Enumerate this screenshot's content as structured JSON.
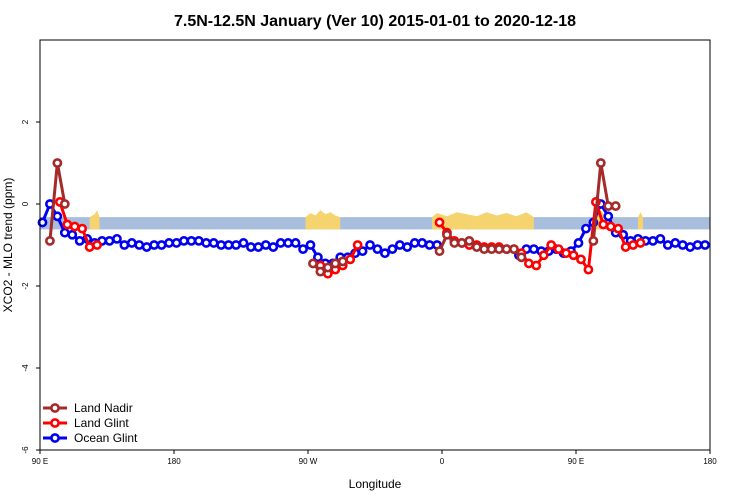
{
  "chart_data": {
    "type": "line",
    "title": "7.5N-12.5N January (Ver 10)   2015-01-01 to 2020-12-18",
    "xlabel": "Longitude",
    "ylabel": "XCO2 - MLO trend (ppm)",
    "xlim": [
      -90,
      180
    ],
    "ylim": [
      -6,
      4
    ],
    "x_ticks": [
      {
        "value": -90,
        "label": "90 E"
      },
      {
        "value": -36,
        "label": "180"
      },
      {
        "value": 18,
        "label": "90 W"
      },
      {
        "value": 72,
        "label": "0"
      },
      {
        "value": 126,
        "label": "90 E"
      },
      {
        "value": 180,
        "label": "180"
      }
    ],
    "y_ticks": [
      {
        "value": -6,
        "label": "-6"
      },
      {
        "value": -4,
        "label": "-4"
      },
      {
        "value": -2,
        "label": "-2"
      },
      {
        "value": 0,
        "label": "0"
      },
      {
        "value": 2,
        "label": "2"
      }
    ],
    "legend_position": "bottom-left",
    "background_band": {
      "y_low": -0.62,
      "y_high": -0.32,
      "color": "#a8bedc"
    },
    "land_mask": {
      "color": "#f5d36f",
      "regions": [
        {
          "x": [
            -70,
            -68,
            -67,
            -66
          ],
          "y": [
            -0.32,
            -0.25,
            -0.15,
            -0.32
          ]
        },
        {
          "x": [
            17,
            19,
            21,
            23,
            25,
            27,
            29,
            31
          ],
          "y": [
            -0.32,
            -0.22,
            -0.28,
            -0.15,
            -0.25,
            -0.2,
            -0.28,
            -0.32
          ]
        },
        {
          "x": [
            68,
            70,
            74,
            78,
            82,
            86,
            90,
            94,
            98,
            102,
            106,
            109
          ],
          "y": [
            -0.32,
            -0.22,
            -0.3,
            -0.2,
            -0.25,
            -0.3,
            -0.2,
            -0.28,
            -0.22,
            -0.3,
            -0.2,
            -0.32
          ]
        },
        {
          "x": [
            134,
            136,
            138
          ],
          "y": [
            -0.32,
            -0.15,
            -0.32
          ]
        },
        {
          "x": [
            151,
            152,
            153
          ],
          "y": [
            -0.32,
            -0.2,
            -0.32
          ]
        }
      ]
    },
    "series": [
      {
        "name": "Ocean Glint",
        "color": "#0000ee",
        "x": [
          -89,
          -86,
          -83,
          -80,
          -77,
          -74,
          -71,
          -68,
          -65,
          -62,
          -59,
          -56,
          -53,
          -50,
          -47,
          -44,
          -41,
          -38,
          -35,
          -32,
          -29,
          -26,
          -23,
          -20,
          -17,
          -14,
          -11,
          -8,
          -5,
          -2,
          1,
          4,
          7,
          10,
          13,
          16,
          19,
          22,
          25,
          28,
          31,
          34,
          37,
          40,
          43,
          46,
          49,
          52,
          55,
          58,
          61,
          64,
          67,
          70,
          103,
          106,
          109,
          112,
          115,
          118,
          121,
          124,
          127,
          130,
          133,
          136,
          139,
          142,
          145,
          148,
          151,
          154,
          157,
          160,
          163,
          166,
          169,
          172,
          175,
          178
        ],
        "y": [
          -0.45,
          0.0,
          -0.3,
          -0.7,
          -0.75,
          -0.9,
          -0.85,
          -0.95,
          -0.9,
          -0.9,
          -0.85,
          -1.0,
          -0.95,
          -1.0,
          -1.05,
          -1.0,
          -1.0,
          -0.95,
          -0.95,
          -0.9,
          -0.9,
          -0.9,
          -0.95,
          -0.95,
          -1.0,
          -1.0,
          -1.0,
          -0.95,
          -1.05,
          -1.05,
          -1.0,
          -1.05,
          -0.95,
          -0.95,
          -0.95,
          -1.1,
          -1.0,
          -1.3,
          -1.45,
          -1.45,
          -1.3,
          -1.3,
          -1.2,
          -1.15,
          -1.0,
          -1.1,
          -1.2,
          -1.1,
          -1.0,
          -1.05,
          -0.95,
          -0.95,
          -1.0,
          -1.0,
          -1.25,
          -1.1,
          -1.1,
          -1.15,
          -1.15,
          -1.1,
          -1.2,
          -1.15,
          -0.95,
          -0.6,
          -0.45,
          0.0,
          -0.3,
          -0.7,
          -0.75,
          -0.9,
          -0.85,
          -0.9,
          -0.9,
          -0.85,
          -1.0,
          -0.95,
          -1.0,
          -1.05,
          -1.0,
          -1.0
        ]
      },
      {
        "name": "Land Glint",
        "color": "#ff0000",
        "x": [
          -82,
          -79,
          -76,
          -73,
          -70,
          -67,
          23,
          26,
          29,
          32,
          35,
          38,
          71,
          74,
          77,
          80,
          83,
          86,
          89,
          92,
          95,
          98,
          101,
          104,
          107,
          110,
          113,
          116,
          119,
          122,
          125,
          128,
          131,
          134,
          137,
          140,
          143,
          146,
          149,
          152
        ],
        "y": [
          0.05,
          -0.5,
          -0.55,
          -0.6,
          -1.05,
          -1.0,
          -1.5,
          -1.7,
          -1.6,
          -1.5,
          -1.35,
          -1.0,
          -0.45,
          -0.7,
          -0.9,
          -0.95,
          -1.0,
          -1.0,
          -1.05,
          -1.05,
          -1.05,
          -1.1,
          -1.1,
          -1.2,
          -1.45,
          -1.5,
          -1.25,
          -1.0,
          -1.1,
          -1.2,
          -1.25,
          -1.35,
          -1.6,
          0.05,
          -0.5,
          -0.55,
          -0.6,
          -1.05,
          -1.0,
          -0.95
        ]
      },
      {
        "name": "Land Nadir",
        "color": "#a52a2a",
        "x": [
          -86,
          -83,
          -80,
          20,
          23,
          26,
          29,
          32,
          71,
          74,
          77,
          80,
          83,
          86,
          89,
          92,
          95,
          98,
          101,
          104,
          133,
          136,
          139,
          142
        ],
        "y": [
          -0.9,
          1.0,
          0.0,
          -1.45,
          -1.65,
          -1.55,
          -1.45,
          -1.4,
          -1.15,
          -0.75,
          -0.95,
          -0.95,
          -0.9,
          -1.05,
          -1.1,
          -1.1,
          -1.1,
          -1.1,
          -1.1,
          -1.3,
          -0.9,
          1.0,
          -0.05,
          -0.05
        ]
      }
    ]
  }
}
